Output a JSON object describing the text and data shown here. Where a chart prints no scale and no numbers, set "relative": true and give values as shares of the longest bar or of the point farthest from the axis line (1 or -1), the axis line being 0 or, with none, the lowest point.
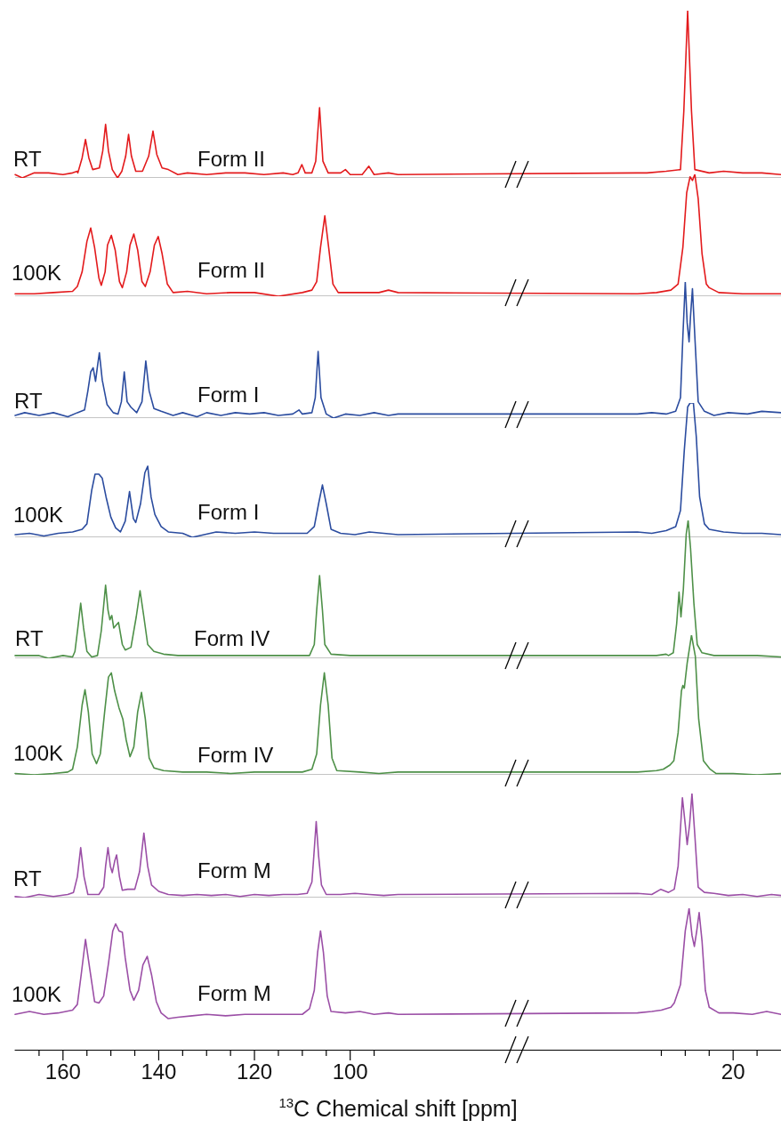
{
  "chart_data": [
    {
      "type": "line",
      "relative": true,
      "xlim": [
        170,
        10
      ],
      "tick_labels": false,
      "marker": "none",
      "annotations": [
        "RT",
        "Form II"
      ],
      "series": [
        {
          "color": "#e31a1c",
          "x": [
            170,
            168.5,
            166,
            163,
            160,
            158,
            157,
            156.9,
            156,
            155.3,
            154.6,
            153.8,
            152.4,
            151.7,
            151.1,
            150.5,
            149.7,
            148.6,
            147.7,
            146.9,
            146.3,
            145.7,
            144.8,
            143.4,
            142.1,
            141.2,
            140.4,
            139.3,
            138,
            136,
            134,
            130,
            126,
            122,
            118,
            114,
            112,
            110.9,
            110.1,
            109.4,
            108,
            107.2,
            106.4,
            105.7,
            104.6,
            102,
            101,
            100,
            97.5,
            96.1,
            95,
            92,
            90,
            40,
            38,
            34,
            31,
            30.3,
            29.5,
            28.7,
            28,
            25,
            22,
            18,
            14,
            10
          ],
          "values": [
            0.02,
            0,
            0.03,
            0.03,
            0.02,
            0.03,
            0.04,
            0.03,
            0.12,
            0.23,
            0.12,
            0.05,
            0.06,
            0.16,
            0.32,
            0.16,
            0.05,
            0,
            0.04,
            0.13,
            0.26,
            0.13,
            0.04,
            0.04,
            0.13,
            0.28,
            0.14,
            0.06,
            0.05,
            0.02,
            0.03,
            0.02,
            0.03,
            0.03,
            0.02,
            0.03,
            0.02,
            0.03,
            0.08,
            0.03,
            0.03,
            0.1,
            0.42,
            0.1,
            0.03,
            0.03,
            0.05,
            0.02,
            0.02,
            0.07,
            0.02,
            0.03,
            0.02,
            0.03,
            0.03,
            0.04,
            0.05,
            0.4,
            1,
            0.4,
            0.05,
            0.03,
            0.04,
            0.03,
            0.03,
            0.02
          ]
        }
      ]
    },
    {
      "type": "line",
      "relative": true,
      "xlim": [
        170,
        10
      ],
      "tick_labels": false,
      "marker": "none",
      "annotations": [
        "100K",
        "Form II"
      ],
      "series": [
        {
          "color": "#e31a1c",
          "x": [
            170,
            166,
            162,
            158,
            157,
            156,
            155,
            154.2,
            153.4,
            152.5,
            152,
            151.2,
            150.7,
            149.9,
            149.1,
            148.2,
            147.6,
            146.7,
            146,
            145.2,
            144.4,
            143.5,
            142.8,
            141.8,
            140.9,
            140.1,
            139.3,
            138.2,
            137,
            134,
            130,
            125,
            120,
            115,
            110,
            108,
            107,
            106.2,
            105.3,
            104.5,
            103.6,
            102.5,
            98,
            94,
            92,
            90,
            40,
            36,
            33,
            31.5,
            30.5,
            29.7,
            29,
            28.5,
            28,
            27.3,
            26.5,
            25.6,
            25,
            23,
            18,
            14,
            10
          ],
          "values": [
            0.02,
            0.02,
            0.03,
            0.04,
            0.08,
            0.2,
            0.45,
            0.56,
            0.4,
            0.15,
            0.09,
            0.2,
            0.42,
            0.5,
            0.38,
            0.12,
            0.07,
            0.2,
            0.42,
            0.51,
            0.38,
            0.12,
            0.08,
            0.2,
            0.42,
            0.49,
            0.35,
            0.1,
            0.03,
            0.04,
            0.02,
            0.03,
            0.03,
            0,
            0.03,
            0.05,
            0.12,
            0.4,
            0.66,
            0.4,
            0.1,
            0.03,
            0.03,
            0.03,
            0.05,
            0.03,
            0.02,
            0.03,
            0.05,
            0.1,
            0.4,
            0.85,
            0.98,
            0.95,
            1,
            0.8,
            0.35,
            0.1,
            0.07,
            0.03,
            0.02,
            0.02,
            0.02
          ]
        }
      ]
    },
    {
      "type": "line",
      "relative": true,
      "xlim": [
        170,
        10
      ],
      "tick_labels": false,
      "marker": "none",
      "annotations": [
        "RT",
        "Form I"
      ],
      "series": [
        {
          "color": "#2b4c9f",
          "x": [
            170,
            168,
            165,
            162,
            159,
            157,
            155.5,
            154.8,
            154.2,
            153.7,
            153.2,
            152.8,
            152.4,
            151.8,
            150.8,
            149.5,
            148.5,
            147.8,
            147.2,
            146.6,
            145.8,
            144.6,
            143.5,
            142.7,
            142,
            141,
            139.5,
            137,
            135,
            132,
            130,
            127,
            124,
            121,
            118,
            115,
            112,
            110.7,
            110,
            108,
            107.3,
            106.7,
            106.1,
            105,
            103.5,
            101,
            98,
            95,
            92,
            90,
            40,
            37,
            34,
            32,
            31,
            30.5,
            30,
            29.6,
            29.2,
            28.9,
            28.5,
            28,
            27.3,
            26,
            24,
            21,
            17,
            14,
            10
          ],
          "values": [
            0.02,
            0.04,
            0.02,
            0.04,
            0.01,
            0.04,
            0.06,
            0.2,
            0.34,
            0.37,
            0.27,
            0.38,
            0.48,
            0.28,
            0.1,
            0.04,
            0.03,
            0.12,
            0.34,
            0.12,
            0.08,
            0.04,
            0.12,
            0.42,
            0.2,
            0.07,
            0.05,
            0.02,
            0.04,
            0.01,
            0.04,
            0.02,
            0.04,
            0.03,
            0.04,
            0.02,
            0.03,
            0.06,
            0.03,
            0.04,
            0.15,
            0.49,
            0.15,
            0.03,
            0,
            0.03,
            0.02,
            0.04,
            0.02,
            0.03,
            0.03,
            0.04,
            0.03,
            0.05,
            0.15,
            0.6,
            1,
            0.7,
            0.56,
            0.75,
            0.95,
            0.6,
            0.12,
            0.05,
            0.02,
            0.04,
            0.03,
            0.05,
            0.04
          ]
        }
      ]
    },
    {
      "type": "line",
      "relative": true,
      "xlim": [
        170,
        10
      ],
      "tick_labels": false,
      "marker": "none",
      "annotations": [
        "100K",
        "Form I"
      ],
      "series": [
        {
          "color": "#2b4c9f",
          "x": [
            170,
            167,
            164,
            161,
            158,
            156,
            155,
            154,
            153.3,
            152.5,
            151.8,
            151,
            150,
            149,
            148,
            147,
            146.1,
            145.3,
            144.8,
            143.8,
            142.9,
            142.3,
            141.6,
            140.8,
            139.5,
            138,
            135,
            133,
            128,
            124,
            120,
            116,
            112,
            109,
            107.5,
            106.6,
            105.8,
            105,
            104,
            102,
            99,
            96,
            93,
            90,
            40,
            37,
            34,
            32,
            31,
            30.2,
            29.5,
            29,
            28.3,
            27.7,
            27,
            26,
            25,
            22,
            18,
            14,
            10
          ],
          "values": [
            0.02,
            0.03,
            0.01,
            0.03,
            0.04,
            0.06,
            0.1,
            0.35,
            0.47,
            0.47,
            0.44,
            0.3,
            0.15,
            0.07,
            0.04,
            0.12,
            0.34,
            0.14,
            0.11,
            0.25,
            0.48,
            0.53,
            0.3,
            0.17,
            0.08,
            0.04,
            0.03,
            0,
            0.04,
            0.03,
            0.04,
            0.03,
            0.03,
            0.03,
            0.08,
            0.25,
            0.39,
            0.25,
            0.06,
            0.03,
            0.02,
            0.04,
            0.03,
            0.02,
            0.04,
            0.03,
            0.05,
            0.08,
            0.2,
            0.65,
            0.97,
            1,
            1,
            0.75,
            0.3,
            0.1,
            0.06,
            0.04,
            0.03,
            0.03,
            0.02
          ]
        }
      ]
    },
    {
      "type": "line",
      "relative": true,
      "xlim": [
        170,
        10
      ],
      "tick_labels": false,
      "marker": "none",
      "annotations": [
        "RT",
        "Form IV"
      ],
      "series": [
        {
          "color": "#4e9048",
          "x": [
            170,
            165,
            163,
            160,
            158,
            157.5,
            156.9,
            156.3,
            155.7,
            155,
            154,
            152.8,
            152,
            151.1,
            150.6,
            150.2,
            149.8,
            149.4,
            148.9,
            148.4,
            147.6,
            147,
            145.8,
            144.7,
            143.9,
            143.1,
            142.3,
            141,
            139,
            136,
            130,
            124,
            118,
            112,
            108.5,
            107.5,
            107,
            106.4,
            105.8,
            105.3,
            104,
            100,
            95,
            90,
            40,
            36,
            34,
            33.5,
            32.5,
            31.8,
            31.3,
            30.9,
            30.4,
            29.8,
            29.4,
            28.9,
            28.2,
            27.5,
            26.5,
            24,
            20,
            15,
            10
          ],
          "values": [
            0.02,
            0.02,
            0,
            0.02,
            0.01,
            0.05,
            0.22,
            0.4,
            0.22,
            0.05,
            0.01,
            0.02,
            0.2,
            0.53,
            0.35,
            0.28,
            0.31,
            0.22,
            0.24,
            0.26,
            0.1,
            0.06,
            0.08,
            0.3,
            0.49,
            0.3,
            0.1,
            0.05,
            0.03,
            0.02,
            0.02,
            0.02,
            0.02,
            0.02,
            0.02,
            0.1,
            0.35,
            0.6,
            0.35,
            0.1,
            0.03,
            0.02,
            0.02,
            0.02,
            0.02,
            0.02,
            0.03,
            0.02,
            0.04,
            0.25,
            0.48,
            0.3,
            0.5,
            0.9,
            1,
            0.8,
            0.4,
            0.1,
            0.04,
            0.02,
            0.02,
            0.02,
            0.01
          ]
        }
      ]
    },
    {
      "type": "line",
      "relative": true,
      "xlim": [
        170,
        10
      ],
      "tick_labels": false,
      "marker": "none",
      "annotations": [
        "100K",
        "Form IV"
      ],
      "series": [
        {
          "color": "#4e9048",
          "x": [
            170,
            166,
            162,
            159,
            158,
            157,
            156,
            155.4,
            154.7,
            153.9,
            153,
            152.2,
            151.3,
            150.5,
            149.9,
            149.2,
            148.3,
            147.5,
            146.8,
            146,
            145.2,
            144.4,
            143.6,
            142.8,
            142,
            141,
            139,
            135,
            130,
            125,
            120,
            115,
            110,
            108,
            107,
            106.2,
            105.4,
            104.6,
            103.8,
            102.8,
            98,
            94,
            90,
            40,
            36,
            34.6,
            33.2,
            32.4,
            31.5,
            30.8,
            30.5,
            30.2,
            29.6,
            28.7,
            27.9,
            27.2,
            26.2,
            24.8,
            23.6,
            20,
            15,
            10
          ],
          "values": [
            0.01,
            0,
            0.01,
            0.02,
            0.04,
            0.2,
            0.5,
            0.61,
            0.45,
            0.15,
            0.08,
            0.15,
            0.45,
            0.7,
            0.73,
            0.6,
            0.48,
            0.4,
            0.25,
            0.13,
            0.2,
            0.45,
            0.59,
            0.4,
            0.12,
            0.05,
            0.03,
            0.02,
            0.02,
            0.01,
            0.02,
            0.02,
            0.02,
            0.04,
            0.15,
            0.5,
            0.73,
            0.5,
            0.12,
            0.03,
            0.02,
            0.01,
            0.02,
            0.02,
            0.03,
            0.04,
            0.07,
            0.1,
            0.3,
            0.6,
            0.64,
            0.62,
            0.8,
            1,
            0.85,
            0.4,
            0.1,
            0.04,
            0.01,
            0.01,
            0,
            0.01
          ]
        }
      ]
    },
    {
      "type": "line",
      "relative": true,
      "xlim": [
        170,
        10
      ],
      "tick_labels": false,
      "marker": "none",
      "annotations": [
        "RT",
        "Form M"
      ],
      "series": [
        {
          "color": "#9b4fa6",
          "x": [
            170,
            168,
            165,
            162,
            159,
            157.8,
            157,
            156.3,
            155.6,
            154.8,
            152.5,
            151.5,
            151.1,
            150.6,
            150.1,
            149.7,
            149.2,
            148.8,
            148.2,
            147.6,
            146.5,
            145,
            144,
            143.1,
            142.3,
            141.5,
            140,
            138,
            135,
            132,
            129,
            126,
            123,
            120,
            117,
            114,
            111,
            109,
            108,
            107.6,
            107.1,
            106.6,
            106,
            105,
            102,
            99,
            96,
            93,
            90,
            40,
            37,
            35.1,
            33.5,
            32.3,
            31.5,
            30.6,
            30,
            29.6,
            29.1,
            28.6,
            28,
            27.3,
            26,
            24,
            21,
            18,
            15,
            12,
            10
          ],
          "values": [
            0.01,
            0,
            0.03,
            0.01,
            0.03,
            0.05,
            0.2,
            0.48,
            0.2,
            0.03,
            0.03,
            0.1,
            0.3,
            0.48,
            0.3,
            0.24,
            0.35,
            0.41,
            0.2,
            0.07,
            0.08,
            0.08,
            0.25,
            0.62,
            0.3,
            0.12,
            0.06,
            0.03,
            0.02,
            0.03,
            0.02,
            0.03,
            0.01,
            0.03,
            0.02,
            0.03,
            0.03,
            0.04,
            0.15,
            0.4,
            0.73,
            0.4,
            0.12,
            0.03,
            0.03,
            0.04,
            0.03,
            0.02,
            0.03,
            0.04,
            0.03,
            0.08,
            0.05,
            0.08,
            0.3,
            0.96,
            0.7,
            0.51,
            0.7,
            1,
            0.6,
            0.1,
            0.05,
            0.04,
            0.02,
            0.03,
            0.01,
            0.03,
            0.02
          ]
        }
      ]
    },
    {
      "type": "line",
      "relative": true,
      "xlim": [
        170,
        10
      ],
      "xticks": [
        {
          "value": 165,
          "label": null
        },
        160,
        {
          "value": 155,
          "label": null
        },
        {
          "value": 150,
          "label": null
        },
        {
          "value": 145,
          "label": null
        },
        140,
        {
          "value": 135,
          "label": null
        },
        {
          "value": 130,
          "label": null
        },
        {
          "value": 125,
          "label": null
        },
        120,
        {
          "value": 115,
          "label": null
        },
        {
          "value": 110,
          "label": null
        },
        {
          "value": 105,
          "label": null
        },
        100,
        {
          "value": 95,
          "label": null
        },
        {
          "value": 35,
          "label": null
        },
        {
          "value": 30,
          "label": null
        },
        {
          "value": 25,
          "label": null
        },
        20,
        {
          "value": 15,
          "label": null
        }
      ],
      "xlabel": "$^{13}$C Chemical shift [ppm]",
      "tick_labels": "x",
      "marker": "none",
      "annotations": [
        "100K",
        "Form M"
      ],
      "series": [
        {
          "color": "#9b4fa6",
          "x": [
            170,
            167,
            164,
            161,
            158,
            157,
            156.2,
            155.3,
            154.4,
            153.4,
            152.5,
            151.5,
            150.5,
            149.6,
            149,
            148.3,
            147.6,
            147,
            146,
            145.2,
            144.2,
            143.3,
            142.4,
            141.5,
            140.5,
            139.5,
            138,
            136,
            133,
            130,
            126,
            122,
            118,
            114,
            110,
            108.5,
            107.5,
            106.8,
            106.2,
            105.6,
            104.8,
            104,
            101,
            98,
            95,
            92,
            90,
            40,
            37,
            35,
            33,
            32.3,
            31,
            30,
            29.2,
            28.6,
            28.1,
            27.6,
            27.1,
            26.5,
            25.8,
            25,
            23,
            20,
            16,
            13,
            10
          ],
          "values": [
            0.25,
            0.27,
            0.25,
            0.26,
            0.28,
            0.32,
            0.53,
            0.78,
            0.57,
            0.34,
            0.33,
            0.38,
            0.61,
            0.84,
            0.89,
            0.84,
            0.83,
            0.65,
            0.42,
            0.35,
            0.42,
            0.6,
            0.66,
            0.53,
            0.34,
            0.26,
            0.22,
            0.23,
            0.24,
            0.25,
            0.24,
            0.25,
            0.25,
            0.25,
            0.25,
            0.29,
            0.42,
            0.69,
            0.84,
            0.69,
            0.38,
            0.27,
            0.26,
            0.27,
            0.25,
            0.26,
            0.25,
            0.26,
            0.27,
            0.28,
            0.3,
            0.33,
            0.46,
            0.84,
            1,
            0.81,
            0.73,
            0.84,
            0.97,
            0.77,
            0.42,
            0.3,
            0.26,
            0.26,
            0.25,
            0.27,
            0.25
          ]
        }
      ]
    }
  ]
}
